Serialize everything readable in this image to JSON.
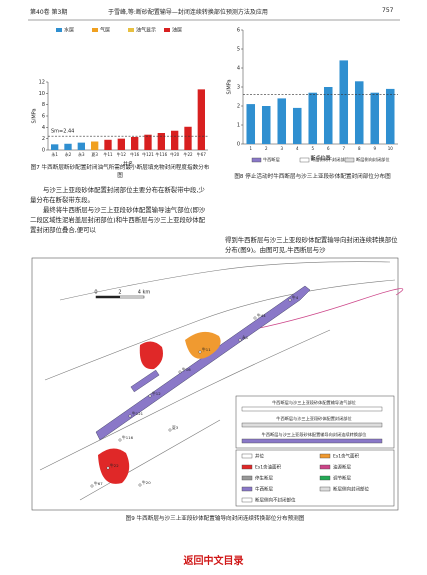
{
  "header": {
    "volume": "第40卷 第3期",
    "title": "于雪峰,等:断砂配置输导—封闭连续转换部位预测方法及应用",
    "page": "757"
  },
  "chart_data": [
    {
      "type": "bar",
      "ylabel": "S/MPa",
      "xlabel": "井名",
      "categories": [
        "永1",
        "永2",
        "永3",
        "夏3",
        "牛11",
        "牛12",
        "牛16",
        "牛121",
        "牛116",
        "牛20",
        "牛22",
        "牛67"
      ],
      "series": [
        {
          "name": "水层",
          "color": "#2f8fd0",
          "values": [
            1.0,
            1.1,
            1.3,
            null,
            null,
            null,
            null,
            null,
            null,
            null,
            null,
            null
          ]
        },
        {
          "name": "气层",
          "color": "#f0a020",
          "values": [
            null,
            null,
            null,
            1.5,
            null,
            null,
            null,
            null,
            null,
            null,
            null,
            null
          ]
        },
        {
          "name": "油气显示",
          "color": "#e8c040",
          "values": [
            null,
            null,
            null,
            null,
            null,
            null,
            null,
            null,
            null,
            null,
            null,
            null
          ]
        },
        {
          "name": "油层",
          "color": "#d82020",
          "values": [
            null,
            null,
            null,
            null,
            1.8,
            2.0,
            2.3,
            2.7,
            3.0,
            3.4,
            4.1,
            10.7
          ]
        }
      ],
      "ylim": [
        0,
        12
      ],
      "yticks": [
        0,
        2,
        4,
        6,
        8,
        10,
        12
      ],
      "reference": {
        "value": 2.44,
        "label": "Sm=2.44"
      }
    },
    {
      "type": "bar",
      "ylabel": "S/MPa",
      "xlabel": "断点位置",
      "categories": [
        "1",
        "2",
        "3",
        "4",
        "5",
        "6",
        "7",
        "8",
        "9",
        "10"
      ],
      "series": [
        {
          "color": "#2f8fd0",
          "values": [
            2.1,
            2.0,
            2.4,
            1.9,
            2.7,
            3.0,
            4.4,
            3.3,
            2.7,
            2.9
          ]
        }
      ],
      "ylim": [
        0,
        6
      ],
      "yticks": [
        0,
        1,
        2,
        3,
        4,
        5,
        6
      ],
      "reference": {
        "value": 2.6
      }
    }
  ],
  "fig8_legend": [
    "牛西断层",
    "断层侧向不封闭部位",
    "断层侧向封闭部位"
  ],
  "captions": {
    "fig7": "图7 牛西断层断砂配置封闭油气所需的最小断层填充物封闭程度指数分布图",
    "fig8": "图8 停止活动时牛西断层与沙三上亚段砂体配置封闭部位分布图",
    "fig9": "图9 牛西断层与沙三上亚段砂体配置输导向封闭连续转换部位分布预测图"
  },
  "body": {
    "left": [
      "与沙三上亚段砂体配置封闭部位主要分布在断裂带中段,少量分布在断裂带东段。",
      "最终将牛西断层与沙三上亚段砂体配置输导油气部位(即沙二段区域性泥岩盖层封闭部位)和牛西断层与沙三上亚段砂体配置封闭部位叠合,便可以"
    ],
    "right": [
      "得到牛西断层与沙三上亚段砂体配置输导向封闭连续转换部位分布(图9)。由图可见,牛西断层与沙"
    ]
  },
  "map": {
    "scale": [
      "0",
      "2",
      "4 km"
    ],
    "wells": [
      "牛4",
      "牛44",
      "牛11",
      "牛16",
      "牛12",
      "牛121",
      "牛116",
      "牛22",
      "牛67",
      "永1",
      "夏3",
      "牛20"
    ],
    "inset": [
      "牛西断层与沙三上亚段砂体配置输导油气部位",
      "牛西断层与沙三上亚段砂体配置封闭部位",
      "牛西断层与沙三上亚段砂体配置输导向封闭连续转换部位"
    ],
    "legend": [
      "井位",
      "Es1含气面积",
      "Es1含油面积",
      "油源断层",
      "停生断层",
      "调节断层",
      "牛西断层",
      "断层侧向封闭部位",
      "断层侧向不封闭部位"
    ]
  },
  "footer": "返回中文目录"
}
